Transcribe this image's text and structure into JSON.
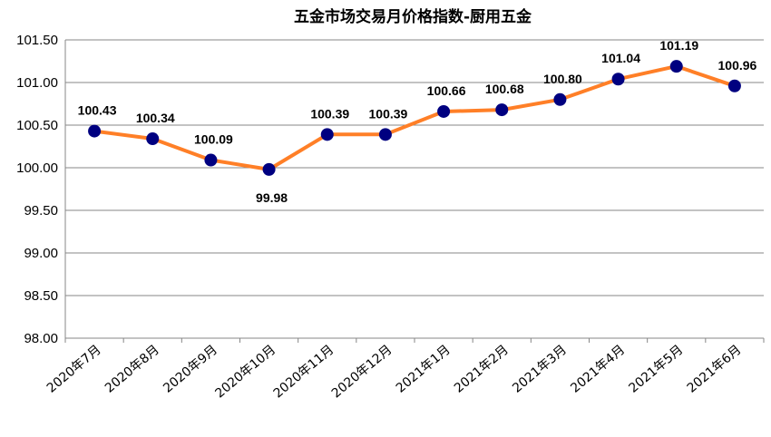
{
  "chart_data": {
    "type": "line",
    "title": "五金市场交易月价格指数-厨用五金",
    "xlabel": "",
    "ylabel": "",
    "categories": [
      "2020年7月",
      "2020年8月",
      "2020年9月",
      "2020年10月",
      "2020年11月",
      "2020年12月",
      "2021年1月",
      "2021年2月",
      "2021年3月",
      "2021年4月",
      "2021年5月",
      "2021年6月"
    ],
    "series": [
      {
        "values": [
          100.43,
          100.34,
          100.09,
          99.98,
          100.39,
          100.39,
          100.66,
          100.68,
          100.8,
          101.04,
          101.19,
          100.96
        ]
      }
    ],
    "data_labels": [
      "100.43",
      "100.34",
      "100.09",
      "99.98",
      "100.39",
      "100.39",
      "100.66",
      "100.68",
      "100.80",
      "101.04",
      "101.19",
      "100.96"
    ],
    "ylim": [
      98.0,
      101.5
    ],
    "yticks": [
      "98.00",
      "98.50",
      "99.00",
      "99.50",
      "100.00",
      "100.50",
      "101.00",
      "101.50"
    ],
    "grid": true,
    "legend": "none",
    "colors": {
      "line": "#FF7F27",
      "marker": "#000080",
      "grid": "#878787"
    }
  }
}
